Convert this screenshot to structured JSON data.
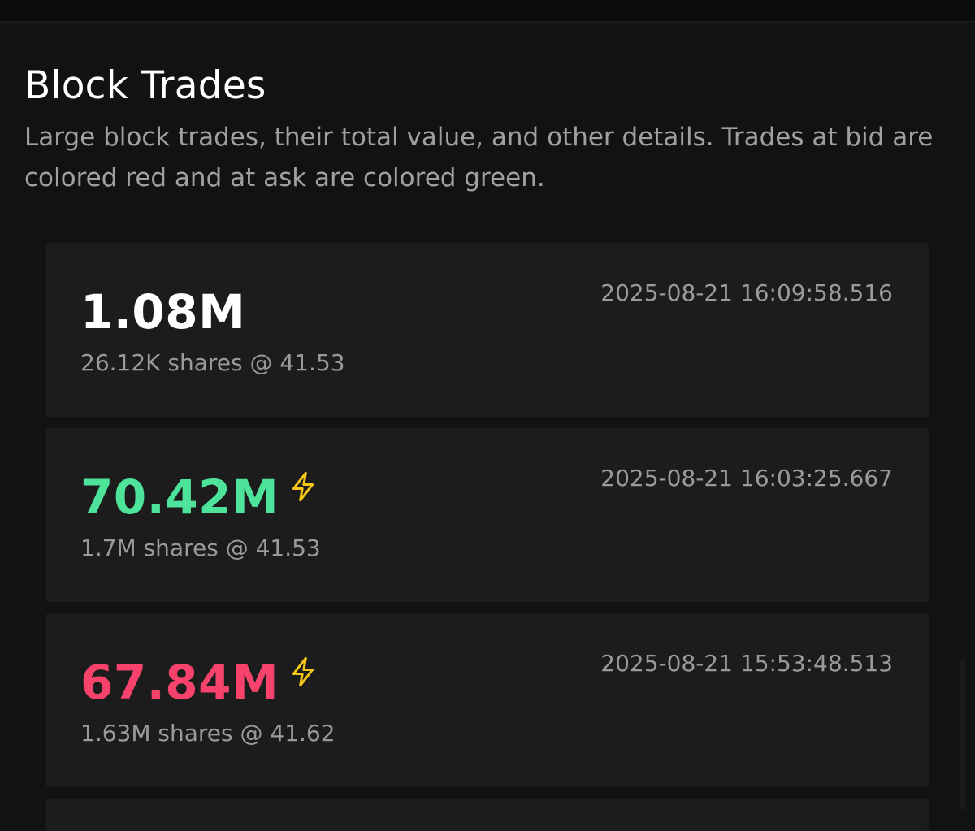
{
  "section": {
    "title": "Block Trades",
    "description": "Large block trades, their total value, and other details. Trades at bid are colored red and at ask are colored green."
  },
  "colors": {
    "neutral": "#ffffff",
    "ask_green": "#4ee39a",
    "bid_red": "#f7436c",
    "bolt_yellow": "#f5c518"
  },
  "trades": [
    {
      "value": "1.08M",
      "shares_line": "26.12K shares @ 41.53",
      "timestamp": "2025-08-21 16:09:58.516",
      "side": "neutral",
      "flagged": false
    },
    {
      "value": "70.42M",
      "shares_line": "1.7M shares @ 41.53",
      "timestamp": "2025-08-21 16:03:25.667",
      "side": "ask",
      "flagged": true,
      "icon": "lightning-bolt-icon"
    },
    {
      "value": "67.84M",
      "shares_line": "1.63M shares @ 41.62",
      "timestamp": "2025-08-21 15:53:48.513",
      "side": "bid",
      "flagged": true,
      "icon": "lightning-bolt-icon"
    }
  ]
}
